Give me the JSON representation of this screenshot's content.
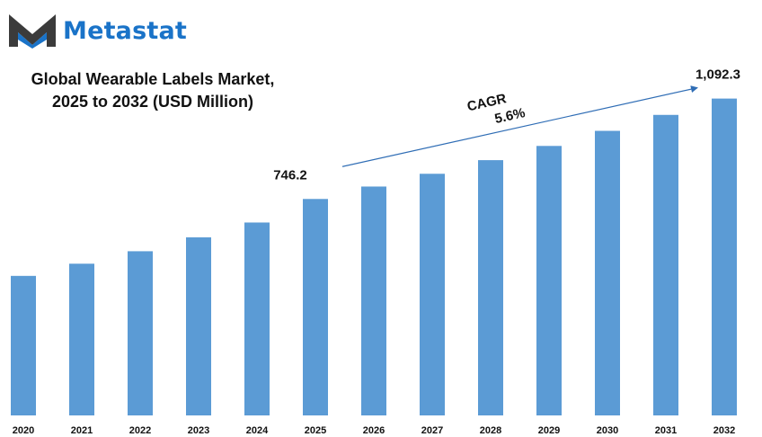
{
  "brand": {
    "name": "Metastat",
    "color": "#1a73c8",
    "icon": "metastat-m-logo-icon"
  },
  "chart_data": {
    "type": "bar",
    "title_line1": "Global Wearable Labels Market,",
    "title_line2": "2025 to 2032 (USD Million)",
    "categories": [
      "2020",
      "2021",
      "2022",
      "2023",
      "2024",
      "2025",
      "2026",
      "2027",
      "2028",
      "2029",
      "2030",
      "2031",
      "2032"
    ],
    "values": [
      481,
      523,
      566,
      614,
      665,
      746.2,
      789,
      833,
      880,
      929,
      981,
      1036,
      1092.3
    ],
    "data_labels": [
      {
        "category": "2025",
        "text": "746.2"
      },
      {
        "category": "2032",
        "text": "1,092.3"
      }
    ],
    "annotation": {
      "label_line1": "CAGR",
      "label_line2": "5.6%",
      "from_category": "2025",
      "to_category": "2032"
    },
    "bar_color": "#5b9bd5",
    "ylim": [
      0,
      1150
    ],
    "grid": false,
    "legend": "none"
  }
}
